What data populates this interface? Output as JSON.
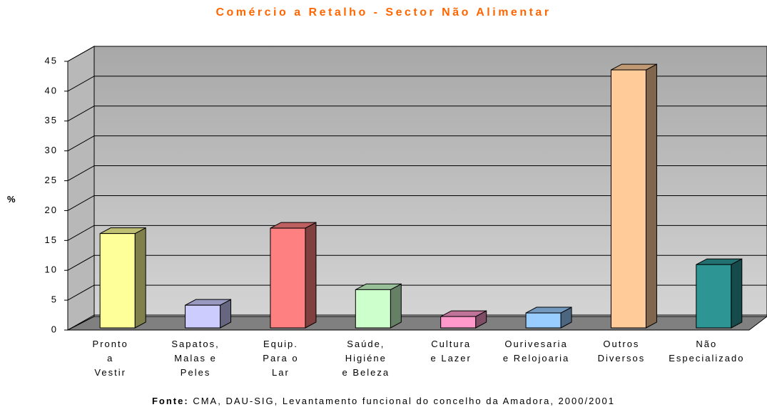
{
  "chart_data": {
    "type": "bar3d",
    "title": "Comércio a Retalho - Sector Não Alimentar",
    "y_label": "%",
    "categories": [
      "Pronto\na\nVestir",
      "Sapatos,\nMalas e\nPeles",
      "Equip.\nPara o\nLar",
      "Saúde,\nHigiéne\ne Beleza",
      "Cultura\ne Lazer",
      "Ourivesaria\ne Relojoaria",
      "Outros\nDiversos",
      "Não\nEspecializado"
    ],
    "values": [
      15.8,
      3.8,
      16.7,
      6.4,
      1.9,
      2.5,
      43.2,
      10.6
    ],
    "colors": [
      "#ffff99",
      "#ccccff",
      "#ff8080",
      "#ccffcc",
      "#ff99cc",
      "#99ccff",
      "#ffcc99",
      "#2e9595"
    ],
    "ylim": [
      0,
      45
    ],
    "yticks": [
      0,
      5,
      10,
      15,
      20,
      25,
      30,
      35,
      40,
      45
    ],
    "grid": true,
    "source_label": "Fonte:",
    "source": "CMA, DAU-SIG, Levantamento funcional do concelho da Amadora, 2000/2001"
  }
}
